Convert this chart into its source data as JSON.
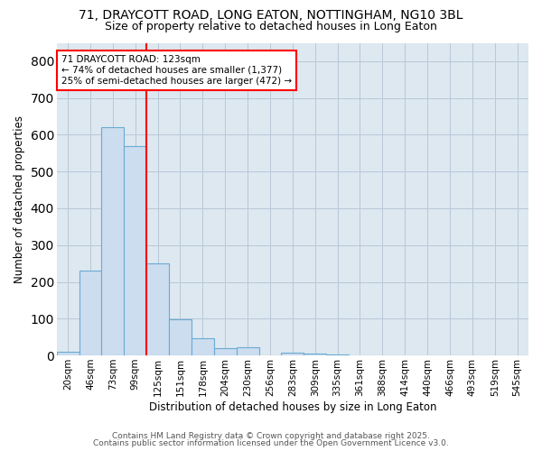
{
  "title_line1": "71, DRAYCOTT ROAD, LONG EATON, NOTTINGHAM, NG10 3BL",
  "title_line2": "Size of property relative to detached houses in Long Eaton",
  "xlabel": "Distribution of detached houses by size in Long Eaton",
  "ylabel": "Number of detached properties",
  "categories": [
    "20sqm",
    "46sqm",
    "73sqm",
    "99sqm",
    "125sqm",
    "151sqm",
    "178sqm",
    "204sqm",
    "230sqm",
    "256sqm",
    "283sqm",
    "309sqm",
    "335sqm",
    "361sqm",
    "388sqm",
    "414sqm",
    "440sqm",
    "466sqm",
    "493sqm",
    "519sqm",
    "545sqm"
  ],
  "values": [
    10,
    230,
    620,
    570,
    250,
    97,
    47,
    20,
    22,
    0,
    7,
    5,
    2,
    0,
    0,
    0,
    0,
    0,
    0,
    0,
    0
  ],
  "bar_color": "#ccddf0",
  "bar_edge_color": "#6aaad4",
  "red_line_index": 3,
  "annotation_title": "71 DRAYCOTT ROAD: 123sqm",
  "annotation_line1": "← 74% of detached houses are smaller (1,377)",
  "annotation_line2": "25% of semi-detached houses are larger (472) →",
  "ylim": [
    0,
    850
  ],
  "yticks": [
    0,
    100,
    200,
    300,
    400,
    500,
    600,
    700,
    800
  ],
  "ax_bg_color": "#dde8f0",
  "grid_color": "#b8c8d8",
  "footer_line1": "Contains HM Land Registry data © Crown copyright and database right 2025.",
  "footer_line2": "Contains public sector information licensed under the Open Government Licence v3.0."
}
